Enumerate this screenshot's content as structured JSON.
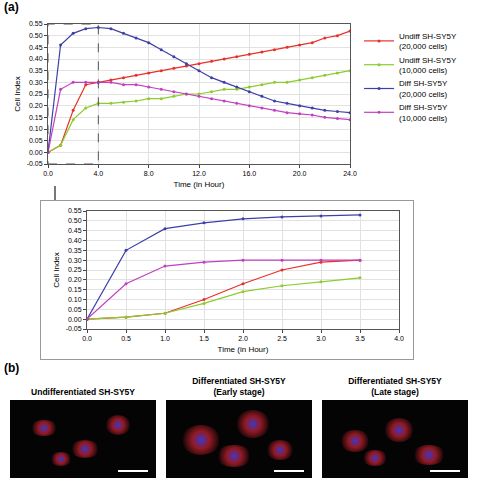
{
  "panel_labels": [
    "(a)",
    "(b)"
  ],
  "chart_data": [
    {
      "type": "line",
      "xlabel": "Time (in Hour)",
      "ylabel": "Cell Index",
      "grid": true,
      "marker": "circle",
      "legend": "right",
      "x": [
        0,
        1,
        2,
        3,
        4,
        5,
        6,
        7,
        8,
        9,
        10,
        11,
        12,
        13,
        14,
        15,
        16,
        17,
        18,
        19,
        20,
        21,
        22,
        23,
        24
      ],
      "xlim": [
        0,
        24
      ],
      "xticks": [
        {
          "value": 0,
          "label": "0.0"
        },
        {
          "value": 4,
          "label": "4.0"
        },
        {
          "value": 8,
          "label": "8.0"
        },
        {
          "value": 12,
          "label": "12.0"
        },
        {
          "value": 16,
          "label": "16.0"
        },
        {
          "value": 20,
          "label": "20.0"
        },
        {
          "value": 24,
          "label": "24.0"
        }
      ],
      "ylim": [
        -0.05,
        0.55
      ],
      "yticks": [
        -0.05,
        {
          "value": 0,
          "label": "0.00"
        },
        0.05,
        {
          "value": 0.1,
          "label": "0.10"
        },
        0.15,
        {
          "value": 0.2,
          "label": "0.20"
        },
        0.25,
        {
          "value": 0.3,
          "label": "0.30"
        },
        0.35,
        {
          "value": 0.4,
          "label": "0.40"
        },
        0.45,
        {
          "value": 0.5,
          "label": "0.50"
        },
        0.55
      ],
      "series": [
        {
          "name": "Undiff SH-SY5Y (20,000 cells)",
          "color": "#e8302a",
          "values": [
            0,
            0.03,
            0.18,
            0.29,
            0.3,
            0.31,
            0.32,
            0.33,
            0.34,
            0.35,
            0.36,
            0.37,
            0.38,
            0.39,
            0.4,
            0.41,
            0.42,
            0.43,
            0.44,
            0.45,
            0.46,
            0.47,
            0.49,
            0.5,
            0.52
          ]
        },
        {
          "name": "Undiff SH-SY5Y (10,000 cells)",
          "color": "#8ccc2c",
          "values": [
            0,
            0.03,
            0.14,
            0.19,
            0.21,
            0.21,
            0.215,
            0.22,
            0.23,
            0.23,
            0.24,
            0.25,
            0.25,
            0.26,
            0.27,
            0.27,
            0.28,
            0.29,
            0.3,
            0.3,
            0.31,
            0.32,
            0.33,
            0.34,
            0.35
          ]
        },
        {
          "name": "Diff SH-SY5Y (20,000 cells)",
          "color": "#3f3fa8",
          "values": [
            0,
            0.46,
            0.51,
            0.53,
            0.535,
            0.53,
            0.51,
            0.49,
            0.47,
            0.44,
            0.41,
            0.38,
            0.35,
            0.32,
            0.3,
            0.28,
            0.26,
            0.24,
            0.22,
            0.21,
            0.2,
            0.19,
            0.18,
            0.175,
            0.17
          ]
        },
        {
          "name": "Diff SH-SY5Y (10,000 cells)",
          "color": "#c040c0",
          "values": [
            0,
            0.27,
            0.3,
            0.3,
            0.3,
            0.3,
            0.29,
            0.29,
            0.28,
            0.27,
            0.26,
            0.25,
            0.24,
            0.23,
            0.22,
            0.21,
            0.2,
            0.19,
            0.18,
            0.17,
            0.165,
            0.16,
            0.15,
            0.145,
            0.14
          ]
        }
      ]
    },
    {
      "type": "line",
      "xlabel": "Time (in Hour)",
      "ylabel": "Cell Index",
      "grid": true,
      "marker": "circle",
      "x": [
        0,
        0.5,
        1,
        1.5,
        2,
        2.5,
        3,
        3.5
      ],
      "xlim": [
        0,
        4
      ],
      "xticks": [
        {
          "value": 0,
          "label": "0.0"
        },
        0.5,
        {
          "value": 1,
          "label": "1.0"
        },
        1.5,
        {
          "value": 2,
          "label": "2.0"
        },
        2.5,
        {
          "value": 3,
          "label": "3.0"
        },
        3.5,
        {
          "value": 4,
          "label": "4.0"
        }
      ],
      "ylim": [
        -0.05,
        0.55
      ],
      "yticks": [
        -0.05,
        {
          "value": 0,
          "label": "0.00"
        },
        0.05,
        {
          "value": 0.1,
          "label": "0.10"
        },
        0.15,
        {
          "value": 0.2,
          "label": "0.20"
        },
        0.25,
        {
          "value": 0.3,
          "label": "0.30"
        },
        0.35,
        {
          "value": 0.4,
          "label": "0.40"
        },
        0.45,
        {
          "value": 0.5,
          "label": "0.50"
        },
        0.55
      ],
      "series": [
        {
          "color": "#e8302a",
          "values": [
            0,
            0.01,
            0.03,
            0.1,
            0.18,
            0.25,
            0.29,
            0.3
          ]
        },
        {
          "color": "#8ccc2c",
          "values": [
            0,
            0.01,
            0.03,
            0.08,
            0.14,
            0.17,
            0.19,
            0.21
          ]
        },
        {
          "color": "#3f3fa8",
          "values": [
            0,
            0.35,
            0.46,
            0.49,
            0.51,
            0.52,
            0.525,
            0.53
          ]
        },
        {
          "color": "#c040c0",
          "values": [
            0,
            0.18,
            0.27,
            0.29,
            0.3,
            0.3,
            0.3,
            0.3
          ]
        }
      ]
    }
  ],
  "images": [
    {
      "title": "Undifferentiated SH-SY5Y"
    },
    {
      "title": "Differentiated SH-SY5Y (Early stage)"
    },
    {
      "title": "Differentiated SH-SY5Y (Late stage)"
    }
  ]
}
